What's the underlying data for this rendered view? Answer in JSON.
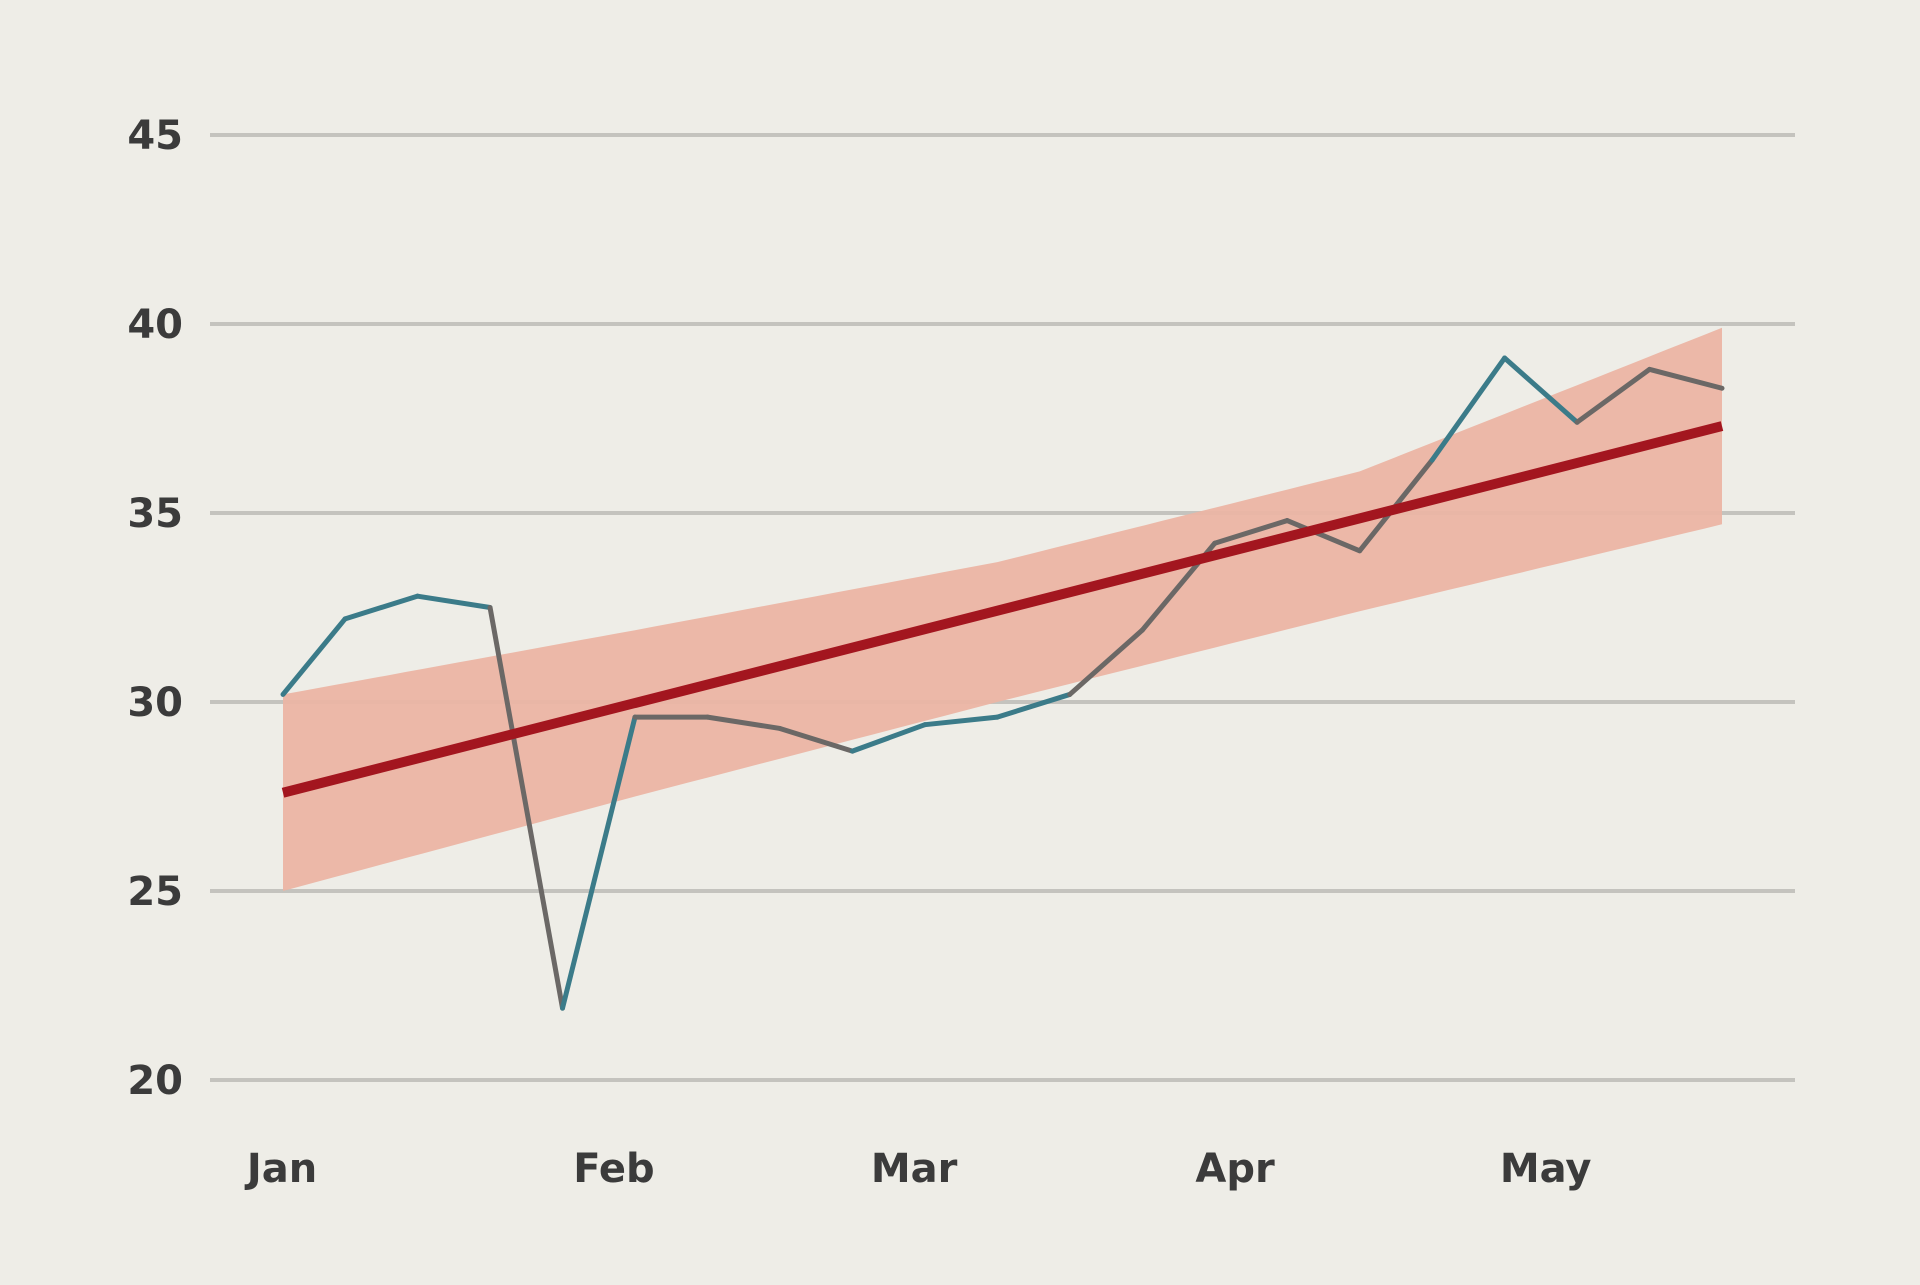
{
  "chart_data": {
    "type": "line",
    "x_domain": [
      "2024-01-01",
      "2024-06-01"
    ],
    "x_ticks": [
      {
        "label": "Jan",
        "date": "2024-01-01"
      },
      {
        "label": "Feb",
        "date": "2024-02-01"
      },
      {
        "label": "Mar",
        "date": "2024-03-01"
      },
      {
        "label": "Apr",
        "date": "2024-04-01"
      },
      {
        "label": "May",
        "date": "2024-05-01"
      }
    ],
    "ylim": [
      20,
      45
    ],
    "yticks": [
      20,
      25,
      30,
      35,
      40,
      45
    ],
    "grid": "horizontal",
    "series": [
      {
        "role": "observed",
        "points": [
          {
            "x": "2024-01-01",
            "y": 30.2
          },
          {
            "x": "2024-01-07",
            "y": 32.2
          },
          {
            "x": "2024-01-14",
            "y": 32.8
          },
          {
            "x": "2024-01-21",
            "y": 32.5
          },
          {
            "x": "2024-01-28",
            "y": 21.9
          },
          {
            "x": "2024-02-04",
            "y": 29.6
          },
          {
            "x": "2024-02-11",
            "y": 29.6
          },
          {
            "x": "2024-02-18",
            "y": 29.3
          },
          {
            "x": "2024-02-25",
            "y": 28.7
          },
          {
            "x": "2024-03-03",
            "y": 29.4
          },
          {
            "x": "2024-03-10",
            "y": 29.6
          },
          {
            "x": "2024-03-17",
            "y": 30.2
          },
          {
            "x": "2024-03-24",
            "y": 31.9
          },
          {
            "x": "2024-03-31",
            "y": 34.2
          },
          {
            "x": "2024-04-07",
            "y": 34.8
          },
          {
            "x": "2024-04-14",
            "y": 34.0
          },
          {
            "x": "2024-04-21",
            "y": 36.4
          },
          {
            "x": "2024-04-28",
            "y": 39.1
          },
          {
            "x": "2024-05-05",
            "y": 37.4
          },
          {
            "x": "2024-05-12",
            "y": 38.8
          },
          {
            "x": "2024-05-19",
            "y": 38.3
          }
        ]
      },
      {
        "role": "trend",
        "points": [
          {
            "x": "2024-01-01",
            "y": 27.6
          },
          {
            "x": "2024-05-19",
            "y": 37.3
          }
        ]
      }
    ],
    "band": {
      "points": [
        {
          "x": "2024-01-01",
          "low": 25.0,
          "high": 30.2
        },
        {
          "x": "2024-02-04",
          "low": 27.5,
          "high": 31.9
        },
        {
          "x": "2024-03-10",
          "low": 30.0,
          "high": 33.7
        },
        {
          "x": "2024-04-14",
          "low": 32.4,
          "high": 36.1
        },
        {
          "x": "2024-05-19",
          "low": 34.7,
          "high": 39.9
        }
      ]
    },
    "colors": {
      "background": "#eeede7",
      "grid": "#c4c3be",
      "band": "#ebb5a4",
      "trend": "#a3161f",
      "observed": "#3b7b89",
      "observed_in_band": "#6b6866",
      "text": "#3b3b3b"
    }
  }
}
